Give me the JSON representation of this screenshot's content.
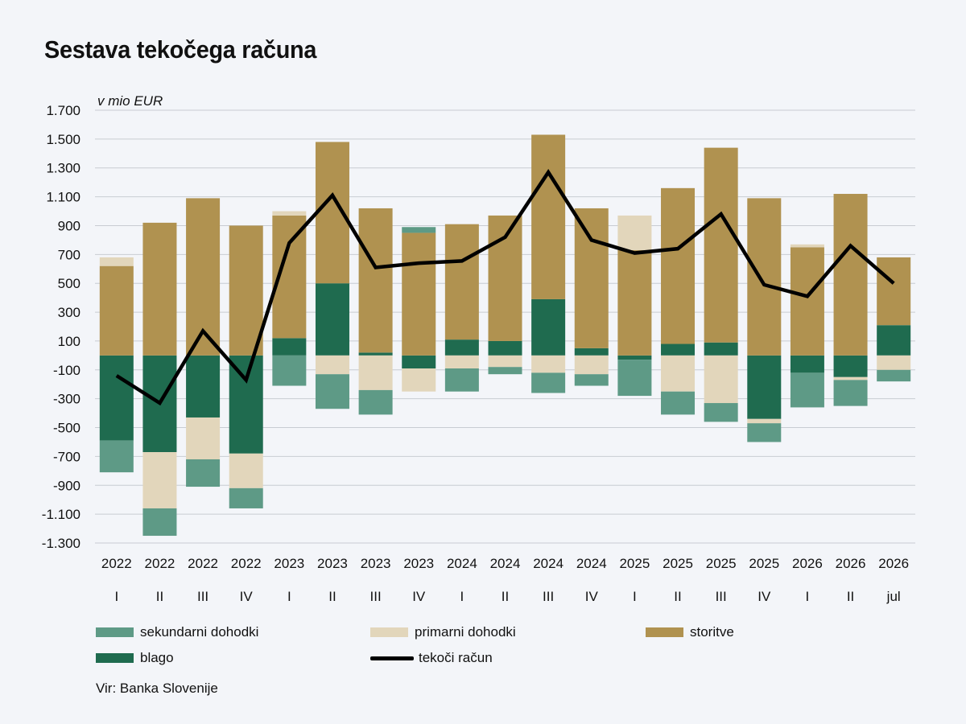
{
  "colors": {
    "sekundarni": "#5e9a86",
    "primarni": "#e2d6bb",
    "storitve": "#b09250",
    "blago": "#1f6b4f",
    "line": "#000000",
    "grid": "#c8ccd2",
    "background": "#f3f5f9"
  },
  "chart_data": {
    "type": "bar",
    "stacked": true,
    "title": "Sestava tekočega računa",
    "unit_label": "v mio EUR",
    "ylim": [
      -1300,
      1700
    ],
    "y_ticks": [
      1700,
      1500,
      1300,
      1100,
      900,
      700,
      500,
      300,
      100,
      -100,
      -300,
      -500,
      -700,
      -900,
      -1100,
      -1300
    ],
    "y_tick_labels": [
      "1.700",
      "1.500",
      "1.300",
      "1.100",
      "900",
      "700",
      "500",
      "300",
      "100",
      "-100",
      "-300",
      "-500",
      "-700",
      "-900",
      "-1.100",
      "-1.300"
    ],
    "grid": true,
    "categories_year": [
      "2022",
      "2022",
      "2022",
      "2022",
      "2023",
      "2023",
      "2023",
      "2023",
      "2024",
      "2024",
      "2024",
      "2024",
      "2025",
      "2025",
      "2025",
      "2025",
      "2026",
      "2026",
      "2026"
    ],
    "categories_period": [
      "I",
      "II",
      "III",
      "IV",
      "I",
      "II",
      "III",
      "IV",
      "I",
      "II",
      "III",
      "IV",
      "I",
      "II",
      "III",
      "IV",
      "I",
      "II",
      "jul"
    ],
    "series": [
      {
        "name": "blago",
        "key": "blago",
        "values": [
          -590,
          -670,
          -430,
          -680,
          120,
          500,
          20,
          -90,
          110,
          100,
          390,
          50,
          -30,
          80,
          90,
          -440,
          -120,
          -150,
          210
        ]
      },
      {
        "name": "storitve",
        "key": "storitve",
        "values": [
          620,
          920,
          1090,
          900,
          850,
          980,
          1000,
          850,
          800,
          870,
          1140,
          970,
          730,
          1080,
          1350,
          1090,
          750,
          1120,
          470
        ]
      },
      {
        "name": "primarni dohodki",
        "key": "primarni",
        "values": [
          60,
          -390,
          -290,
          -240,
          30,
          -130,
          -240,
          -160,
          -90,
          -80,
          -120,
          -130,
          240,
          -250,
          -330,
          -30,
          20,
          -20,
          -100
        ]
      },
      {
        "name": "sekundarni dohodki",
        "key": "sekundarni",
        "values": [
          -220,
          -190,
          -190,
          -140,
          -210,
          -240,
          -170,
          40,
          -160,
          -50,
          -140,
          -80,
          -250,
          -160,
          -130,
          -130,
          -240,
          -180,
          -80
        ]
      }
    ],
    "line": {
      "name": "tekoči račun",
      "values": [
        -140,
        -330,
        170,
        -170,
        780,
        1110,
        610,
        640,
        655,
        820,
        1270,
        800,
        710,
        740,
        980,
        490,
        410,
        760,
        500
      ]
    },
    "legend": [
      "sekundarni dohodki",
      "primarni dohodki",
      "storitve",
      "blago",
      "tekoči račun"
    ],
    "legend_position": "bottom"
  },
  "source_note": "Vir: Banka Slovenije"
}
